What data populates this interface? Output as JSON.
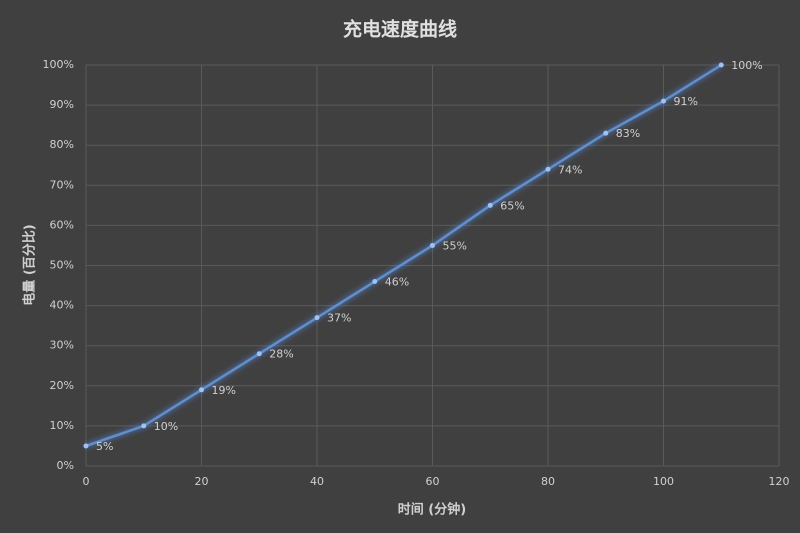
{
  "chart_data": {
    "type": "line",
    "title": "充电速度曲线",
    "x_label": "时间 (分钟)",
    "y_label": "电量 (百分比)",
    "x": [
      0,
      10,
      20,
      30,
      40,
      50,
      60,
      70,
      80,
      90,
      100,
      110
    ],
    "series": [
      {
        "color": "#5b8fd6",
        "values": [
          5,
          10,
          19,
          28,
          37,
          46,
          55,
          65,
          74,
          83,
          91,
          100
        ],
        "value_labels": [
          "5%",
          "10%",
          "19%",
          "28%",
          "37%",
          "46%",
          "55%",
          "65%",
          "74%",
          "83%",
          "91%",
          "100%"
        ]
      }
    ],
    "xlim": [
      0,
      120
    ],
    "xticks": [
      0,
      20,
      40,
      60,
      80,
      100,
      120
    ],
    "ylim": [
      0,
      100
    ],
    "yticks": [
      {
        "value": 0,
        "label": "0%"
      },
      {
        "value": 10,
        "label": "10%"
      },
      {
        "value": 20,
        "label": "20%"
      },
      {
        "value": 30,
        "label": "30%"
      },
      {
        "value": 40,
        "label": "40%"
      },
      {
        "value": 50,
        "label": "50%"
      },
      {
        "value": 60,
        "label": "60%"
      },
      {
        "value": 70,
        "label": "70%"
      },
      {
        "value": 80,
        "label": "80%"
      },
      {
        "value": 90,
        "label": "90%"
      },
      {
        "value": 100,
        "label": "100%"
      }
    ],
    "grid": true
  }
}
